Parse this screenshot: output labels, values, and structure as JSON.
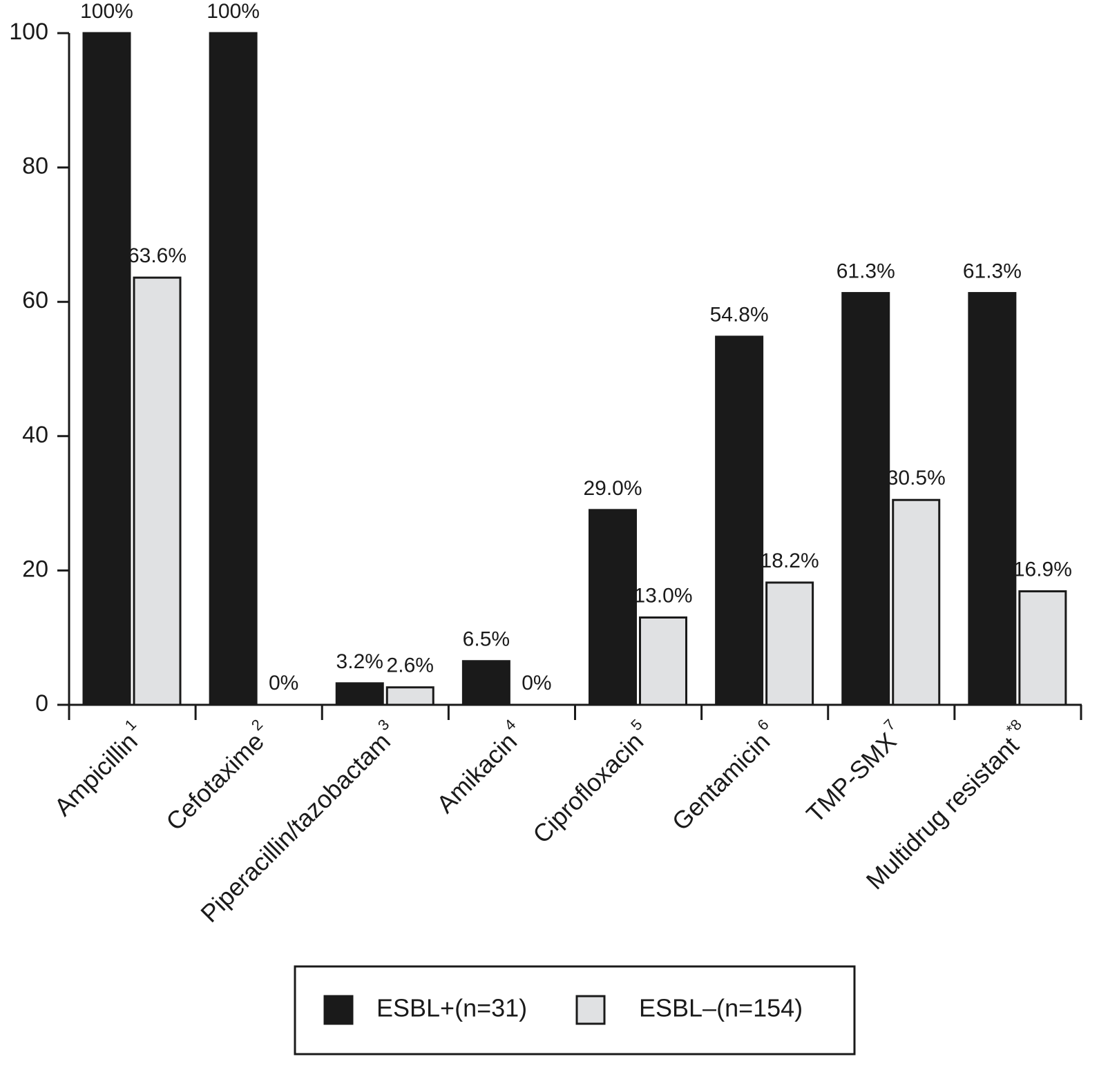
{
  "chart_data": {
    "type": "bar",
    "categories": [
      "Ampicillin",
      "Cefotaxime",
      "Piperacillin/tazobactam",
      "Amikacin",
      "Ciprofloxacin",
      "Gentamicin",
      "TMP-SMX",
      "Multidrug resistant"
    ],
    "category_notes": [
      "1",
      "2",
      "3",
      "4",
      "5",
      "6",
      "7",
      "*8"
    ],
    "series": [
      {
        "name": "ESBL+(n=31)",
        "color": "#1a1a1a",
        "values": [
          100,
          100,
          3.2,
          6.5,
          29.0,
          54.8,
          61.3,
          61.3
        ],
        "value_labels": [
          "100%",
          "100%",
          "3.2%",
          "6.5%",
          "29.0%",
          "54.8%",
          "61.3%",
          "61.3%"
        ]
      },
      {
        "name": "ESBL–(n=154)",
        "color": "#e0e1e3",
        "values": [
          63.6,
          0,
          2.6,
          0,
          13.0,
          18.2,
          30.5,
          16.9
        ],
        "value_labels": [
          "63.6%",
          "0%",
          "2.6%",
          "0%",
          "13.0%",
          "18.2%",
          "30.5%",
          "16.9%"
        ]
      }
    ],
    "ylim": [
      0,
      100
    ],
    "yticks": [
      0,
      20,
      40,
      60,
      80,
      100
    ],
    "legend": "bottom"
  }
}
